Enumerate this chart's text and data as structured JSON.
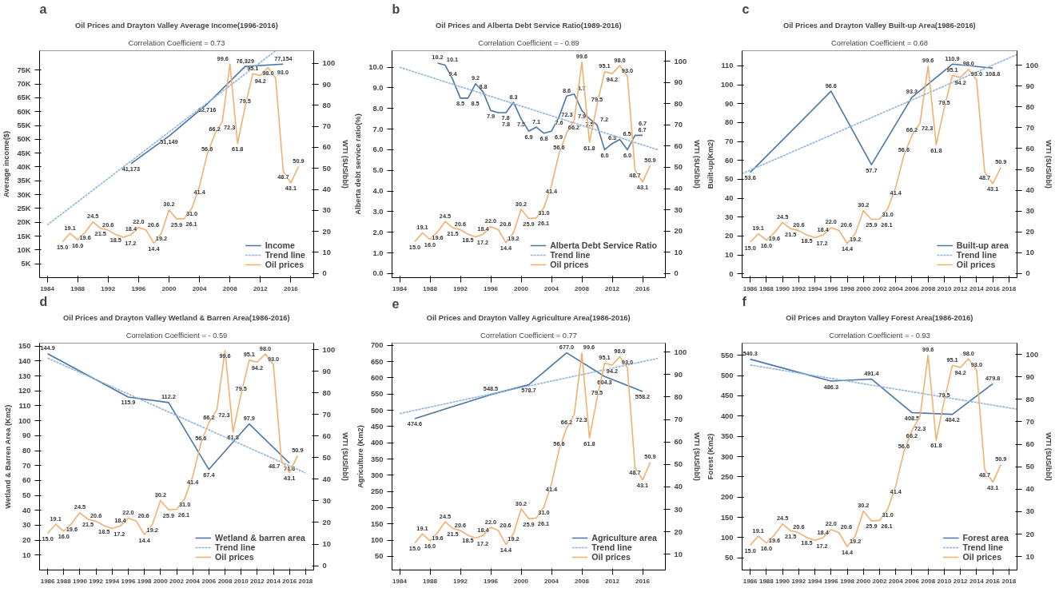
{
  "chart_data": [
    {
      "type": "line",
      "title": "Oil Prices and Drayton Valley Average Income(1996-2016)",
      "subtitle": "Correlation Coefficient = 0.73",
      "annotations": [
        "a"
      ],
      "ylabel": "Average income($)",
      "y2label": "WTI ($US/bbl)",
      "xlim": [
        1983,
        2019
      ],
      "xticks": [
        1984,
        1988,
        1992,
        1996,
        2000,
        2004,
        2008,
        2012,
        2016
      ],
      "ylim": [
        0,
        82000
      ],
      "yticks": [
        {
          "value": 5000,
          "label": "5K"
        },
        {
          "value": 10000,
          "label": "10K"
        },
        {
          "value": 15000,
          "label": "15K"
        },
        {
          "value": 20000,
          "label": "20K"
        },
        {
          "value": 25000,
          "label": "25K"
        },
        {
          "value": 30000,
          "label": "30K"
        },
        {
          "value": 35000,
          "label": "35K"
        },
        {
          "value": 40000,
          "label": "40K"
        },
        {
          "value": 45000,
          "label": "45K"
        },
        {
          "value": 50000,
          "label": "50K"
        },
        {
          "value": 55000,
          "label": "55K"
        },
        {
          "value": 60000,
          "label": "60K"
        },
        {
          "value": 65000,
          "label": "65K"
        },
        {
          "value": 70000,
          "label": "70K"
        },
        {
          "value": 75000,
          "label": "75K"
        }
      ],
      "y2lim": [
        -2,
        106
      ],
      "y2ticks": [
        0,
        10,
        20,
        30,
        40,
        50,
        60,
        70,
        80,
        90,
        100
      ],
      "grid": false,
      "legend": "bottom right",
      "marker": "none",
      "series": [
        {
          "name": "Income",
          "color": "#4a74a8",
          "x": [
            1995,
            2000,
            2005,
            2010,
            2015
          ],
          "values": [
            41173,
            51149,
            62716,
            76329,
            77154
          ],
          "value_labels": [
            "41,173",
            "51,149",
            "62,716",
            "76,329",
            "77,154"
          ],
          "line_style": "solid"
        },
        {
          "name": "Trend line",
          "color": "#8fb4dc",
          "x": [
            1984,
            2014
          ],
          "values": [
            19000,
            82000
          ],
          "line_style": "dotted"
        },
        {
          "name": "Oil prices",
          "color": "#f0b070",
          "axis": "y2",
          "line_style": "solid",
          "x": [
            1986,
            1987,
            1988,
            1989,
            1990,
            1991,
            1992,
            1993,
            1994,
            1995,
            1996,
            1997,
            1998,
            1999,
            2000,
            2001,
            2002,
            2003,
            2004,
            2005,
            2006,
            2007,
            2008,
            2009,
            2010,
            2011,
            2012,
            2013,
            2014,
            2015,
            2016,
            2017
          ],
          "values": [
            15.0,
            19.1,
            16.0,
            19.6,
            24.5,
            21.5,
            20.6,
            18.5,
            17.2,
            18.4,
            22.0,
            20.6,
            14.4,
            19.2,
            30.2,
            25.9,
            26.1,
            31.0,
            41.4,
            56.6,
            66.2,
            72.3,
            99.6,
            61.8,
            79.5,
            95.1,
            94.2,
            98.0,
            93.0,
            48.7,
            43.1,
            50.9
          ],
          "value_labels": [
            "15.0",
            "19.1",
            "16.0",
            "19.6",
            "24.5",
            "21.5",
            "20.6",
            "18.5",
            "17.2",
            "18.4",
            "22.0",
            "20.6",
            "14.4",
            "19.2",
            "30.2",
            "25.9",
            "26.1",
            "31.0",
            "41.4",
            "56.6",
            "66.2",
            "72.3",
            "99.6",
            "61.8",
            "79.5",
            "95.1",
            "94.2",
            "98.0",
            "93.0",
            "48.7",
            "43.1",
            "50.9"
          ]
        }
      ]
    },
    {
      "type": "line",
      "title": "Oil Prices and Alberta Debt Service Ratio(1989-2016)",
      "subtitle": "Correlation Coefficient = - 0.89",
      "annotations": [
        "b"
      ],
      "ylabel": "Alberta debt service ratio(%)",
      "y2label": "WTI ($US/bbl)",
      "xlim": [
        1983,
        2019
      ],
      "xticks": [
        1984,
        1988,
        1992,
        1996,
        2000,
        2004,
        2008,
        2012,
        2016
      ],
      "ylim": [
        -0.2,
        10.8
      ],
      "yticks": [
        {
          "value": 0,
          "label": "0.0"
        },
        {
          "value": 1,
          "label": "1.0"
        },
        {
          "value": 2,
          "label": "2.0"
        },
        {
          "value": 3,
          "label": "3.0"
        },
        {
          "value": 4,
          "label": "4.0"
        },
        {
          "value": 5,
          "label": "5.0"
        },
        {
          "value": 6,
          "label": "6.0"
        },
        {
          "value": 7,
          "label": "7.0"
        },
        {
          "value": 8,
          "label": "8.0"
        },
        {
          "value": 9,
          "label": "9.0"
        },
        {
          "value": 10,
          "label": "10.0"
        }
      ],
      "y2lim": [
        -2,
        105
      ],
      "y2ticks": [
        0,
        10,
        20,
        30,
        40,
        50,
        60,
        70,
        80,
        90,
        100
      ],
      "grid": false,
      "legend": "bottom right",
      "marker": "none",
      "series": [
        {
          "name": "Alberta Debt Service Ratio",
          "color": "#4a74a8",
          "line_style": "solid",
          "x": [
            1989,
            1990,
            1991,
            1992,
            1993,
            1994,
            1995,
            1996,
            1997,
            1998,
            1999,
            2000,
            2001,
            2002,
            2003,
            2004,
            2005,
            2006,
            2007,
            2008,
            2009,
            2010,
            2011,
            2012,
            2013,
            2014,
            2015,
            2016
          ],
          "values": [
            10.2,
            10.1,
            9.4,
            8.5,
            8.5,
            9.2,
            8.8,
            7.9,
            7.8,
            7.8,
            8.3,
            7.5,
            6.9,
            7.1,
            6.8,
            6.9,
            7.6,
            8.6,
            8.7,
            7.9,
            7.5,
            7.2,
            6.0,
            6.3,
            6.5,
            6.0,
            6.7,
            6.7
          ],
          "value_labels": [
            "10.2",
            "10.1",
            "9.4",
            "8.5",
            "8.5",
            "9.2",
            "8.8",
            "7.9",
            "7.8",
            "7.8",
            "8.3",
            "7.5",
            "6.9",
            "7.1",
            "6.8",
            "6.9",
            "7.6",
            "8.6",
            "8.7",
            "7.9",
            "7.5",
            "7.2",
            "6.0",
            "6.3",
            "6.5",
            "6.0",
            "6.7",
            "6.7"
          ]
        },
        {
          "name": "Trend line",
          "color": "#8fb4dc",
          "x": [
            1984,
            2018
          ],
          "values": [
            10.0,
            6.0
          ],
          "line_style": "dotted"
        },
        {
          "name": "Oil prices",
          "color": "#f0b070",
          "axis": "y2",
          "line_style": "solid",
          "x": [
            1986,
            1987,
            1988,
            1989,
            1990,
            1991,
            1992,
            1993,
            1994,
            1995,
            1996,
            1997,
            1998,
            1999,
            2000,
            2001,
            2002,
            2003,
            2004,
            2005,
            2006,
            2007,
            2008,
            2009,
            2010,
            2011,
            2012,
            2013,
            2014,
            2015,
            2016,
            2017
          ],
          "values": [
            15.0,
            19.1,
            16.0,
            19.6,
            24.5,
            21.5,
            20.6,
            18.5,
            17.2,
            18.4,
            22.0,
            20.6,
            14.4,
            19.2,
            30.2,
            25.9,
            26.1,
            31.0,
            41.4,
            56.6,
            66.2,
            72.3,
            99.6,
            61.8,
            79.5,
            95.1,
            94.2,
            98.0,
            93.0,
            48.7,
            43.1,
            50.9
          ],
          "value_labels": [
            "15.0",
            "19.1",
            "16.0",
            "19.6",
            "24.5",
            "21.5",
            "20.6",
            "18.5",
            "17.2",
            "18.4",
            "22.0",
            "20.6",
            "14.4",
            "19.2",
            "30.2",
            "25.9",
            "26.1",
            "31.0",
            "41.4",
            "56.6",
            "66.2",
            "72.3",
            "99.6",
            "61.8",
            "79.5",
            "95.1",
            "94.2",
            "98.0",
            "93.0",
            "48.7",
            "43.1",
            "50.9"
          ]
        }
      ]
    },
    {
      "type": "line",
      "title": "Oil Prices and Drayton Valley Built-up Area(1986-2016)",
      "subtitle": "Correlation Coefficient = 0.68",
      "annotations": [
        "c"
      ],
      "ylabel": "Built-up(Km2)",
      "y2label": "WTI ($US/bbl)",
      "xlim": [
        1985,
        2019
      ],
      "xticks": [
        1986,
        1988,
        1990,
        1992,
        1994,
        1996,
        1998,
        2000,
        2002,
        2004,
        2006,
        2008,
        2010,
        2012,
        2014,
        2016,
        2018
      ],
      "ylim": [
        -2,
        118
      ],
      "yticks": [
        0,
        10,
        20,
        30,
        40,
        50,
        60,
        70,
        80,
        90,
        100,
        110
      ],
      "y2lim": [
        -2,
        107
      ],
      "y2ticks": [
        0,
        10,
        20,
        30,
        40,
        50,
        60,
        70,
        80,
        90,
        100
      ],
      "grid": false,
      "legend": "bottom right",
      "marker": "none",
      "series": [
        {
          "name": "Built-up area",
          "color": "#4a74a8",
          "data_labels": true,
          "line_style": "solid",
          "x": [
            1986,
            1996,
            2001,
            2006,
            2011,
            2016
          ],
          "values": [
            53.6,
            96.6,
            57.7,
            93.3,
            110.9,
            108.8
          ]
        },
        {
          "name": "Trend line",
          "color": "#8fb4dc",
          "x": [
            1985,
            2019
          ],
          "values": [
            53.0,
            116.0
          ],
          "line_style": "dotted"
        },
        {
          "name": "Oil prices",
          "color": "#f0b070",
          "axis": "y2",
          "line_style": "solid",
          "x": [
            1986,
            1987,
            1988,
            1989,
            1990,
            1991,
            1992,
            1993,
            1994,
            1995,
            1996,
            1997,
            1998,
            1999,
            2000,
            2001,
            2002,
            2003,
            2004,
            2005,
            2006,
            2007,
            2008,
            2009,
            2010,
            2011,
            2012,
            2013,
            2014,
            2015,
            2016,
            2017
          ],
          "values": [
            15.0,
            19.1,
            16.0,
            19.6,
            24.5,
            21.5,
            20.6,
            18.5,
            17.2,
            18.4,
            22.0,
            20.6,
            14.4,
            19.2,
            30.2,
            25.9,
            26.1,
            31.0,
            41.4,
            56.6,
            66.2,
            72.3,
            99.6,
            61.8,
            79.5,
            95.1,
            94.2,
            98.0,
            93.0,
            48.7,
            43.1,
            50.9
          ],
          "value_labels": [
            "15.0",
            "19.1",
            "16.0",
            "19.6",
            "24.5",
            "21.5",
            "20.6",
            "18.5",
            "17.2",
            "18.4",
            "22.0",
            "20.6",
            "14.4",
            "19.2",
            "30.2",
            "25.9",
            "26.1",
            "31.0",
            "41.4",
            "56.6",
            "66.2",
            "72.3",
            "99.6",
            "61.8",
            "79.5",
            "95.1",
            "94.2",
            "98.0",
            "93.0",
            "48.7",
            "43.1",
            "50.9"
          ]
        }
      ]
    },
    {
      "type": "line",
      "title": "Oil Prices and Drayton Valley Wetland & Barren Area(1986-2016)",
      "subtitle": "Correlation Coefficient = - 0.59",
      "annotations": [
        "d"
      ],
      "ylabel": "Wetland & Barren Area (Km2)",
      "y2label": "WTI ($US/bbl)",
      "xlim": [
        1985,
        2019
      ],
      "xticks": [
        1986,
        1988,
        1990,
        1992,
        1994,
        1996,
        1998,
        2000,
        2002,
        2004,
        2006,
        2008,
        2010,
        2012,
        2014,
        2016,
        2018
      ],
      "ylim": [
        0,
        152
      ],
      "yticks": [
        10,
        20,
        30,
        40,
        50,
        60,
        70,
        80,
        90,
        100,
        110,
        120,
        130,
        140,
        150
      ],
      "y2lim": [
        -2,
        103
      ],
      "y2ticks": [
        0,
        10,
        20,
        30,
        40,
        50,
        60,
        70,
        80,
        90,
        100
      ],
      "grid": false,
      "legend": "bottom right",
      "marker": "none",
      "series": [
        {
          "name": "Wetland & barren area",
          "color": "#4a74a8",
          "data_labels": true,
          "line_style": "solid",
          "x": [
            1986,
            1996,
            2001,
            2006,
            2011,
            2016
          ],
          "values": [
            144.9,
            115.9,
            112.2,
            67.4,
            97.9,
            71.6
          ]
        },
        {
          "name": "Trend line",
          "color": "#8fb4dc",
          "x": [
            1986,
            2018
          ],
          "values": [
            142.0,
            65.0
          ],
          "line_style": "dotted"
        },
        {
          "name": "Oil prices",
          "color": "#f0b070",
          "axis": "y2",
          "line_style": "solid",
          "x": [
            1986,
            1987,
            1988,
            1989,
            1990,
            1991,
            1992,
            1993,
            1994,
            1995,
            1996,
            1997,
            1998,
            1999,
            2000,
            2001,
            2002,
            2003,
            2004,
            2005,
            2006,
            2007,
            2008,
            2009,
            2010,
            2011,
            2012,
            2013,
            2014,
            2015,
            2016,
            2017
          ],
          "values": [
            15.0,
            19.1,
            16.0,
            19.6,
            24.5,
            21.5,
            20.6,
            18.5,
            17.2,
            18.4,
            22.0,
            20.6,
            14.4,
            19.2,
            30.2,
            25.9,
            26.1,
            31.0,
            41.4,
            56.6,
            66.2,
            72.3,
            99.6,
            61.8,
            79.5,
            95.1,
            94.2,
            98.0,
            93.0,
            48.7,
            43.1,
            50.9
          ],
          "value_labels": [
            "15.0",
            "19.1",
            "16.0",
            "19.6",
            "24.5",
            "21.5",
            "20.6",
            "18.5",
            "17.2",
            "18.4",
            "22.0",
            "20.6",
            "14.4",
            "19.2",
            "30.2",
            "25.9",
            "26.1",
            "31.0",
            "41.4",
            "56.6",
            "66.2",
            "72.3",
            "99.6",
            "61.8",
            "79.5",
            "95.1",
            "94.2",
            "98.0",
            "93.0",
            "48.7",
            "43.1",
            "50.9"
          ]
        }
      ]
    },
    {
      "type": "line",
      "title": "Oil Prices and Drayton Valley Agriculture Area(1986-2016)",
      "subtitle": "Correlation Coefficient = 0.77",
      "annotations": [
        "e"
      ],
      "ylabel": "Agriculture (Km2)",
      "y2label": "WTI ($US/bbl)",
      "xlim": [
        1983,
        2019
      ],
      "xticks": [
        1984,
        1988,
        1992,
        1996,
        2000,
        2004,
        2008,
        2012,
        2016
      ],
      "ylim": [
        8,
        707
      ],
      "yticks": [
        50,
        100,
        150,
        200,
        250,
        300,
        350,
        400,
        450,
        500,
        550,
        600,
        650,
        700
      ],
      "y2lim": [
        3,
        104
      ],
      "y2ticks": [
        10,
        20,
        30,
        40,
        50,
        60,
        70,
        80,
        90,
        100
      ],
      "grid": false,
      "legend": "bottom right",
      "marker": "none",
      "series": [
        {
          "name": "Agriculture area",
          "color": "#4a74a8",
          "line_style": "solid",
          "x": [
            1986,
            1996,
            2001,
            2006,
            2011,
            2016
          ],
          "values": [
            474.6,
            548.5,
            578.7,
            677.0,
            604.3,
            558.2
          ],
          "value_labels": [
            "474.6",
            "548.5",
            "578.7",
            "677.0",
            "604.3",
            "558.2"
          ]
        },
        {
          "name": "Trend line",
          "color": "#8fb4dc",
          "x": [
            1984,
            2018
          ],
          "values": [
            490.0,
            660.0
          ],
          "line_style": "dotted"
        },
        {
          "name": "Oil prices",
          "color": "#f0b070",
          "axis": "y2",
          "line_style": "solid",
          "x": [
            1986,
            1987,
            1988,
            1989,
            1990,
            1991,
            1992,
            1993,
            1994,
            1995,
            1996,
            1997,
            1998,
            1999,
            2000,
            2001,
            2002,
            2003,
            2004,
            2005,
            2006,
            2007,
            2008,
            2009,
            2010,
            2011,
            2012,
            2013,
            2014,
            2015,
            2016,
            2017
          ],
          "values": [
            15.0,
            19.1,
            16.0,
            19.6,
            24.5,
            21.5,
            20.6,
            18.5,
            17.2,
            18.4,
            22.0,
            20.6,
            14.4,
            19.2,
            30.2,
            25.9,
            26.1,
            31.0,
            41.4,
            56.6,
            66.2,
            72.3,
            99.6,
            61.8,
            79.5,
            95.1,
            94.2,
            98.0,
            93.0,
            48.7,
            43.1,
            50.9
          ],
          "value_labels": [
            "15.0",
            "19.1",
            "16.0",
            "19.6",
            "24.5",
            "21.5",
            "20.6",
            "18.5",
            "17.2",
            "18.4",
            "22.0",
            "20.6",
            "14.4",
            "19.2",
            "30.2",
            "25.9",
            "26.1",
            "31.0",
            "41.4",
            "56.6",
            "66.2",
            "72.3",
            "99.6",
            "61.8",
            "79.5",
            "95.1",
            "94.2",
            "98.0",
            "93.0",
            "48.7",
            "43.1",
            "50.9"
          ]
        }
      ]
    },
    {
      "type": "line",
      "title": "Oil Prices and Drayton Valley Forest Area(1986-2016)",
      "subtitle": "Correlation Coefficient = - 0.93",
      "annotations": [
        "f"
      ],
      "ylabel": "Forest (Km2)",
      "y2label": "WTI ($US/bbl)",
      "xlim": [
        1985,
        2019
      ],
      "xticks": [
        1986,
        1988,
        1990,
        1992,
        1994,
        1996,
        1998,
        2000,
        2002,
        2004,
        2006,
        2008,
        2010,
        2012,
        2014,
        2016,
        2018
      ],
      "ylim": [
        20,
        580
      ],
      "yticks": [
        50,
        100,
        150,
        200,
        250,
        300,
        350,
        400,
        450,
        500,
        550
      ],
      "y2lim": [
        4,
        105
      ],
      "y2ticks": [
        10,
        20,
        30,
        40,
        50,
        60,
        70,
        80,
        90,
        100
      ],
      "grid": false,
      "legend": "bottom right",
      "marker": "none",
      "series": [
        {
          "name": "Forest area",
          "color": "#4a74a8",
          "data_labels": true,
          "line_style": "solid",
          "x": [
            1986,
            1996,
            2001,
            2006,
            2011,
            2016
          ],
          "values": [
            540.3,
            486.3,
            491.4,
            408.5,
            404.2,
            479.8
          ]
        },
        {
          "name": "Trend line",
          "color": "#8fb4dc",
          "x": [
            1986,
            2019
          ],
          "values": [
            526.0,
            417.0
          ],
          "line_style": "dotted"
        },
        {
          "name": "Oil prices",
          "color": "#f0b070",
          "axis": "y2",
          "line_style": "solid",
          "x": [
            1986,
            1987,
            1988,
            1989,
            1990,
            1991,
            1992,
            1993,
            1994,
            1995,
            1996,
            1997,
            1998,
            1999,
            2000,
            2001,
            2002,
            2003,
            2004,
            2005,
            2006,
            2007,
            2008,
            2009,
            2010,
            2011,
            2012,
            2013,
            2014,
            2015,
            2016,
            2017
          ],
          "values": [
            15.0,
            19.1,
            16.0,
            19.6,
            24.5,
            21.5,
            20.6,
            18.5,
            17.2,
            18.4,
            22.0,
            20.6,
            14.4,
            19.2,
            30.2,
            25.9,
            26.1,
            31.0,
            41.4,
            56.6,
            66.2,
            72.3,
            99.6,
            61.8,
            79.5,
            95.1,
            94.2,
            98.0,
            93.0,
            48.7,
            43.1,
            50.9
          ],
          "value_labels": [
            "15.0",
            "19.1",
            "16.0",
            "19.6",
            "24.5",
            "21.5",
            "20.6",
            "18.5",
            "17.2",
            "18.4",
            "22.0",
            "20.6",
            "14.4",
            "19.2",
            "30.2",
            "25.9",
            "26.1",
            "31.0",
            "41.4",
            "56.6",
            "66.2",
            "72.3",
            "99.6",
            "61.8",
            "79.5",
            "95.1",
            "94.2",
            "98.0",
            "93.0",
            "48.7",
            "43.1",
            "50.9"
          ]
        }
      ]
    }
  ]
}
